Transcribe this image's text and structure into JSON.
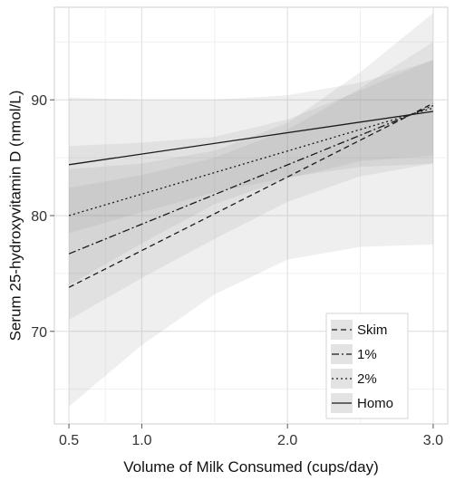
{
  "chart_data": {
    "type": "line",
    "title": "",
    "xlabel": "Volume of Milk Consumed (cups/day)",
    "ylabel": "Serum 25-hydroxyvitamin D (nmol/L)",
    "xlim": [
      0.4,
      3.1
    ],
    "ylim": [
      62,
      98
    ],
    "x_ticks": [
      0.5,
      1.0,
      2.0,
      3.0
    ],
    "x_tick_labels": [
      "0.5",
      "1.0",
      "2.0",
      "3.0"
    ],
    "y_ticks": [
      70,
      80,
      90
    ],
    "y_tick_labels": [
      "70",
      "80",
      "90"
    ],
    "grid": true,
    "legend_position": "bottom-right",
    "series": [
      {
        "name": "Skim",
        "line_style": "dashed",
        "points": [
          [
            0.5,
            73.8
          ],
          [
            3.0,
            89.7
          ]
        ],
        "ci_lower": [
          [
            0.5,
            63.5
          ],
          [
            1.0,
            68.8
          ],
          [
            1.5,
            73.2
          ],
          [
            2.0,
            76.2
          ],
          [
            2.5,
            77.3
          ],
          [
            3.0,
            77.5
          ]
        ],
        "ci_upper": [
          [
            0.5,
            84.0
          ],
          [
            1.0,
            84.5
          ],
          [
            1.5,
            85.6
          ],
          [
            2.0,
            88.0
          ],
          [
            2.5,
            92.4
          ],
          [
            3.0,
            97.5
          ]
        ]
      },
      {
        "name": "1%",
        "line_style": "dashdot",
        "points": [
          [
            0.5,
            76.7
          ],
          [
            3.0,
            89.5
          ]
        ],
        "ci_lower": [
          [
            0.5,
            71.0
          ],
          [
            1.0,
            74.6
          ],
          [
            1.5,
            78.0
          ],
          [
            2.0,
            81.2
          ],
          [
            2.5,
            83.4
          ],
          [
            3.0,
            84.5
          ]
        ],
        "ci_upper": [
          [
            0.5,
            82.4
          ],
          [
            1.0,
            83.5
          ],
          [
            1.5,
            85.0
          ],
          [
            2.0,
            87.4
          ],
          [
            2.5,
            91.0
          ],
          [
            3.0,
            95.0
          ]
        ]
      },
      {
        "name": "2%",
        "line_style": "dotted",
        "points": [
          [
            0.5,
            80.0
          ],
          [
            3.0,
            89.3
          ]
        ],
        "ci_lower": [
          [
            0.5,
            74.0
          ],
          [
            1.0,
            77.6
          ],
          [
            1.5,
            81.0
          ],
          [
            2.0,
            83.2
          ],
          [
            2.5,
            84.7
          ],
          [
            3.0,
            85.2
          ]
        ],
        "ci_upper": [
          [
            0.5,
            86.0
          ],
          [
            1.0,
            86.3
          ],
          [
            1.5,
            86.8
          ],
          [
            2.0,
            88.3
          ],
          [
            2.5,
            90.8
          ],
          [
            3.0,
            93.5
          ]
        ]
      },
      {
        "name": "Homo",
        "line_style": "solid",
        "points": [
          [
            0.5,
            84.4
          ],
          [
            3.0,
            89.0
          ]
        ],
        "ci_lower": [
          [
            0.5,
            78.5
          ],
          [
            1.0,
            80.3
          ],
          [
            1.5,
            82.0
          ],
          [
            2.0,
            83.3
          ],
          [
            2.5,
            84.2
          ],
          [
            3.0,
            84.5
          ]
        ],
        "ci_upper": [
          [
            0.5,
            90.2
          ],
          [
            1.0,
            90.0
          ],
          [
            1.5,
            90.0
          ],
          [
            2.0,
            90.4
          ],
          [
            2.5,
            91.5
          ],
          [
            3.0,
            93.4
          ]
        ]
      }
    ]
  }
}
